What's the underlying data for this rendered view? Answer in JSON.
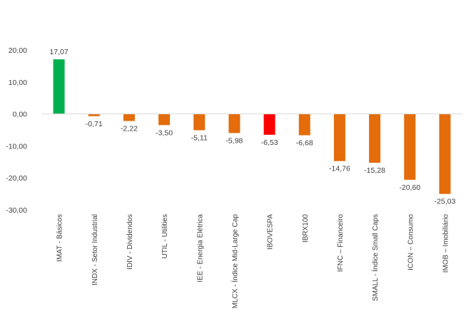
{
  "chart_data": {
    "type": "bar",
    "categories": [
      "IMAT - Básicos",
      "INDX - Setor Industrial",
      "IDIV - Dividendos",
      "UTIL - Utilities",
      "IEE - Energia Elétrica",
      "MLCX - Índice Mid-Large Cap",
      "IBOVESPA",
      "IBRX100",
      "IFNC – Financeiro",
      "SMALL - Índice Small Caps",
      "ICON – Consumo",
      "IMOB – Imobiliário"
    ],
    "values": [
      17.07,
      -0.71,
      -2.22,
      -3.5,
      -5.11,
      -5.98,
      -6.53,
      -6.68,
      -14.76,
      -15.28,
      -20.6,
      -25.03
    ],
    "value_labels": [
      "17,07",
      "-0,71",
      "-2,22",
      "-3,50",
      "-5,11",
      "-5,98",
      "-6,53",
      "-6,68",
      "-14,76",
      "-15,28",
      "-20,60",
      "-25,03"
    ],
    "bar_colors": [
      "#00b050",
      "#e46c0a",
      "#e46c0a",
      "#e46c0a",
      "#e46c0a",
      "#e46c0a",
      "#ff0000",
      "#e46c0a",
      "#e46c0a",
      "#e46c0a",
      "#e46c0a",
      "#e46c0a"
    ],
    "yticks": [
      20,
      10,
      0,
      -10,
      -20,
      -30
    ],
    "ytick_labels": [
      "20,00",
      "10,00",
      "0,00",
      "-10,00",
      "-20,00",
      "-30,00"
    ],
    "ylim": [
      -30,
      20
    ],
    "title": "",
    "xlabel": "",
    "ylabel": "",
    "grid": false,
    "legend": false
  }
}
